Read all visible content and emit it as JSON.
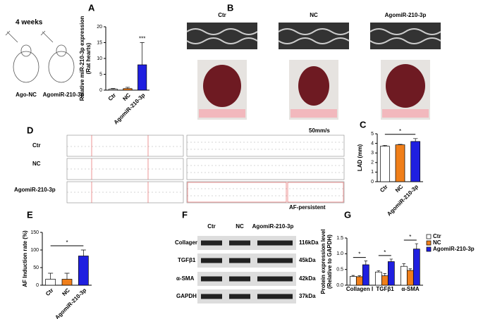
{
  "panel_letters": [
    "A",
    "B",
    "C",
    "D",
    "E",
    "F",
    "G"
  ],
  "schematic": {
    "title": "4 weeks",
    "labels": [
      "Ago-NC",
      "AgomiR-210-3p"
    ]
  },
  "echo": {
    "labels": [
      "Ctr",
      "NC",
      "AgomiR-210-3p"
    ]
  },
  "ecg": {
    "speed": "50mm/s",
    "rows": [
      "Ctr",
      "NC",
      "AgomiR-210-3p"
    ],
    "note": "AF-persistent"
  },
  "western": {
    "columns": [
      "Ctr",
      "NC",
      "AgomiR-210-3p"
    ],
    "rows": [
      "Collagen Ⅰ",
      "TGFβ1",
      "α-SMA",
      "GAPDH"
    ],
    "sizes": [
      "116kDa",
      "45kDa",
      "42kDa",
      "37kDa"
    ]
  },
  "chart_data": [
    {
      "type": "bar",
      "ylabel": [
        "Relative miR-210-3p expression",
        "(Rat hearts)"
      ],
      "categories": [
        "Ctr",
        "NC",
        "AgomiR-210-3p"
      ],
      "values": [
        0.3,
        0.5,
        8
      ],
      "errors": [
        0.2,
        0.4,
        7
      ],
      "colors": [
        "#ffffff",
        "#f07f1a",
        "#1f1fe0"
      ],
      "ylim": [
        0,
        20
      ],
      "yticks": [
        0,
        5,
        10,
        15,
        20
      ],
      "annotations": [
        "***"
      ]
    },
    {
      "type": "bar",
      "ylabel": [
        "LAD (mm)"
      ],
      "categories": [
        "Ctr",
        "NC",
        "AgomiR-210-3p"
      ],
      "values": [
        3.7,
        3.85,
        4.2
      ],
      "errors": [
        0.1,
        0.05,
        0.3
      ],
      "colors": [
        "#ffffff",
        "#f07f1a",
        "#1f1fe0"
      ],
      "ylim": [
        0,
        5
      ],
      "yticks": [
        0,
        1,
        2,
        3,
        4,
        5
      ],
      "annotations": [
        "*"
      ]
    },
    {
      "type": "bar",
      "ylabel": [
        "AF Induction rate (%)"
      ],
      "categories": [
        "Ctr",
        "NC",
        "AgomiR-210-3p"
      ],
      "values": [
        17,
        17,
        83
      ],
      "errors": [
        17,
        17,
        17
      ],
      "colors": [
        "#ffffff",
        "#f07f1a",
        "#1f1fe0"
      ],
      "ylim": [
        0,
        150
      ],
      "yticks": [
        0,
        50,
        100,
        150
      ],
      "annotations": [
        "*"
      ]
    },
    {
      "type": "grouped",
      "ylabel": [
        "Protein expression level",
        "(Relative to GAPDH)"
      ],
      "categories": [
        "Collagen Ⅰ",
        "TGFβ1",
        "α-SMA"
      ],
      "series": [
        {
          "name": "Ctr",
          "color": "#ffffff",
          "values": [
            0.28,
            0.42,
            0.6
          ],
          "errors": [
            0.03,
            0.04,
            0.08
          ]
        },
        {
          "name": "NC",
          "color": "#f07f1a",
          "values": [
            0.27,
            0.3,
            0.47
          ],
          "errors": [
            0.03,
            0.07,
            0.05
          ]
        },
        {
          "name": "AgomiR-210-3p",
          "color": "#1f1fe0",
          "values": [
            0.65,
            0.75,
            1.15
          ],
          "errors": [
            0.12,
            0.08,
            0.17
          ]
        }
      ],
      "ylim": [
        0,
        1.5
      ],
      "yticks": [
        {
          "value": 0,
          "label": "0.0"
        },
        {
          "value": 0.5,
          "label": "0.5"
        },
        {
          "value": 1,
          "label": "1.0"
        },
        {
          "value": 1.5,
          "label": "1.5"
        }
      ],
      "annotations": [
        "*",
        "*",
        "*"
      ]
    }
  ]
}
